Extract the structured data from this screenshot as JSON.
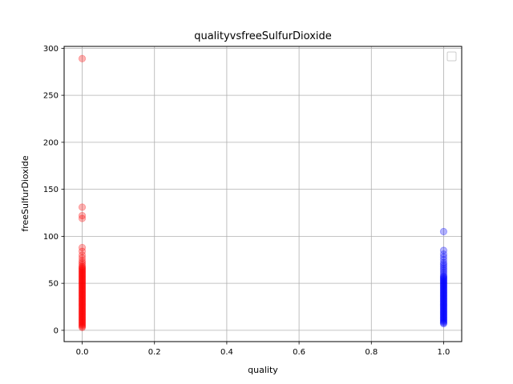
{
  "chart_data": {
    "type": "scatter",
    "title": "qualityvsfreeSulfurDioxide",
    "xlabel": "quality",
    "ylabel": "freeSulfurDioxide",
    "xlim": [
      -0.05,
      1.05
    ],
    "ylim": [
      -12,
      302
    ],
    "xticks": [
      "0.0",
      "0.2",
      "0.4",
      "0.6",
      "0.8",
      "1.0"
    ],
    "yticks": [
      "0",
      "50",
      "100",
      "150",
      "200",
      "250",
      "300"
    ],
    "grid": true,
    "legend": "top-right",
    "series": [
      {
        "color": "#ff0000",
        "alpha": 0.3,
        "x": 0,
        "y": [
          3,
          4,
          5,
          6,
          7,
          8,
          9,
          10,
          11,
          12,
          13,
          14,
          15,
          16,
          17,
          18,
          19,
          20,
          21,
          22,
          23,
          24,
          25,
          26,
          27,
          28,
          29,
          30,
          31,
          32,
          33,
          34,
          35,
          36,
          37,
          38,
          39,
          40,
          41,
          42,
          43,
          44,
          45,
          46,
          47,
          48,
          49,
          50,
          51,
          52,
          53,
          54,
          55,
          56,
          57,
          58,
          59,
          60,
          61,
          62,
          63,
          64,
          65,
          66,
          67,
          68,
          70,
          72,
          74,
          77,
          80,
          84,
          88,
          119,
          122,
          131,
          289
        ]
      },
      {
        "color": "#0000ff",
        "alpha": 0.3,
        "x": 1,
        "y": [
          7,
          8,
          9,
          10,
          11,
          12,
          13,
          14,
          15,
          16,
          17,
          18,
          19,
          20,
          21,
          22,
          23,
          24,
          25,
          26,
          27,
          28,
          29,
          30,
          31,
          32,
          33,
          34,
          35,
          36,
          37,
          38,
          39,
          40,
          41,
          42,
          43,
          44,
          45,
          46,
          47,
          48,
          49,
          50,
          51,
          52,
          53,
          54,
          55,
          56,
          57,
          58,
          60,
          62,
          64,
          66,
          68,
          70,
          72,
          75,
          78,
          81,
          85,
          105
        ]
      }
    ]
  }
}
